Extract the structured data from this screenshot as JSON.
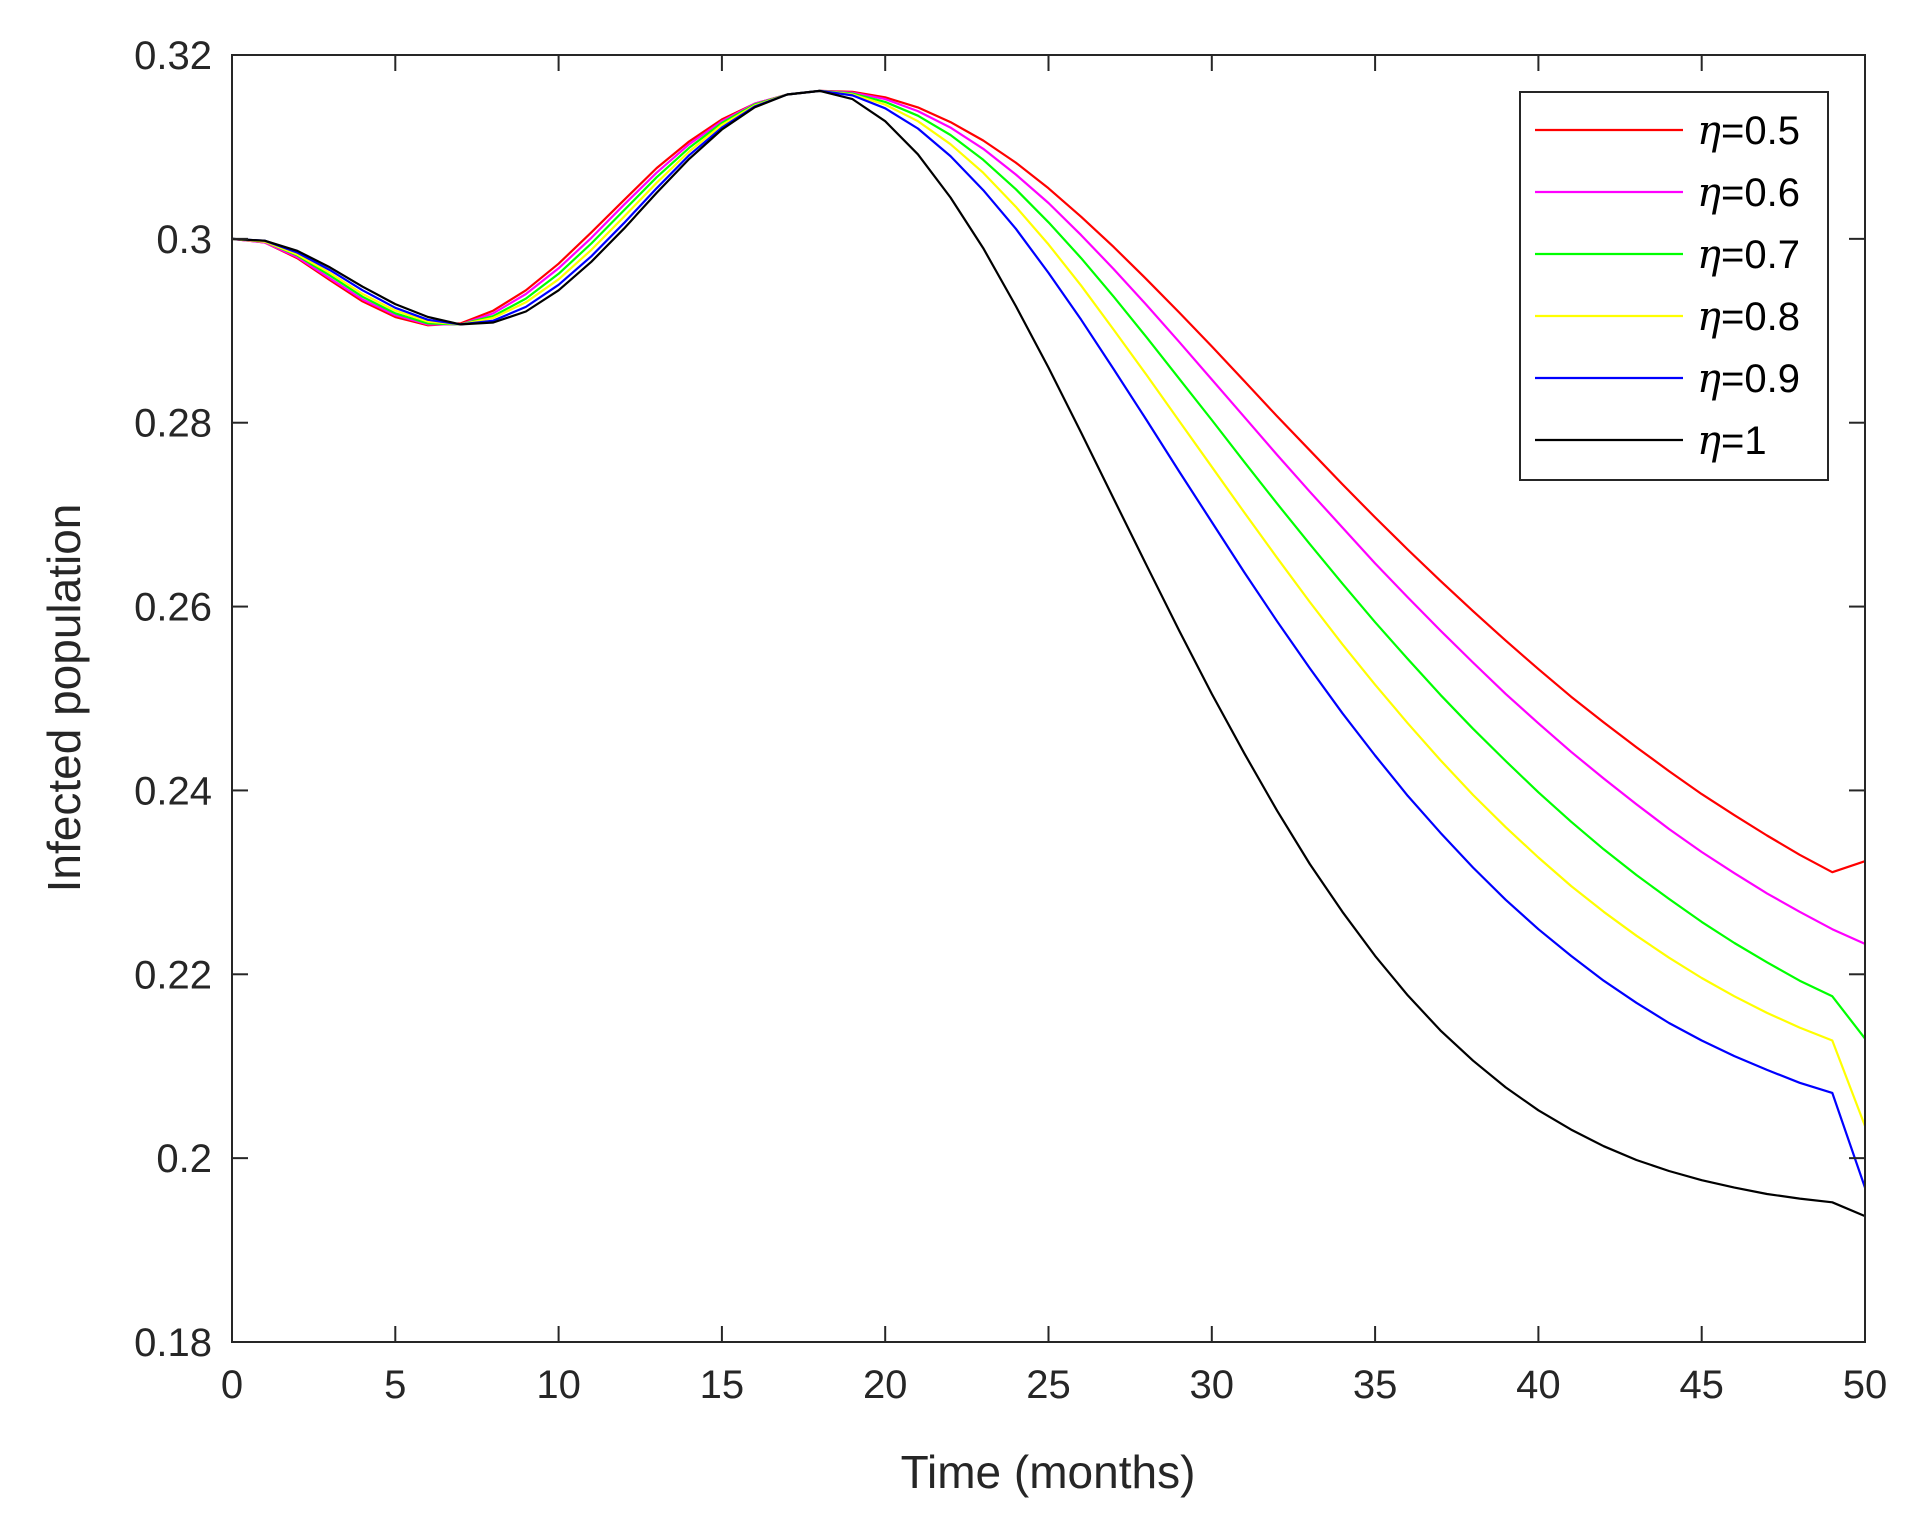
{
  "chart_data": {
    "type": "line",
    "title": "",
    "xlabel": "Time (months)",
    "ylabel": "Infected population",
    "xlim": [
      0,
      50
    ],
    "ylim": [
      0.18,
      0.32
    ],
    "xticks": [
      0,
      5,
      10,
      15,
      20,
      25,
      30,
      35,
      40,
      45,
      50
    ],
    "xtick_labels": [
      "0",
      "5",
      "10",
      "15",
      "20",
      "25",
      "30",
      "35",
      "40",
      "45",
      "50"
    ],
    "yticks": [
      0.18,
      0.2,
      0.22,
      0.24,
      0.26,
      0.28,
      0.3,
      0.32
    ],
    "ytick_labels": [
      "0.18",
      "0.2",
      "0.22",
      "0.24",
      "0.26",
      "0.28",
      "0.3",
      "0.32"
    ],
    "legend_position": "top-right",
    "grid": false,
    "series": [
      {
        "name": "η=0.5",
        "symbol": "η",
        "value_label": "=0.5",
        "color": "#ff0000",
        "x": [
          0,
          1,
          2,
          3,
          4,
          5,
          6,
          7,
          8,
          9,
          10,
          11,
          12,
          13,
          14,
          15,
          16,
          17,
          18,
          19,
          20,
          21,
          22,
          23,
          24,
          25,
          26,
          27,
          28,
          29,
          30,
          31,
          32,
          33,
          34,
          35,
          36,
          37,
          38,
          39,
          40,
          41,
          42,
          43,
          44,
          45,
          46,
          47,
          48,
          49,
          50
        ],
        "y": [
          0.3,
          0.2996,
          0.2979,
          0.2955,
          0.2932,
          0.2915,
          0.2906,
          0.2908,
          0.2922,
          0.2944,
          0.2973,
          0.3007,
          0.3042,
          0.3077,
          0.3106,
          0.313,
          0.3147,
          0.3157,
          0.3161,
          0.316,
          0.3154,
          0.3143,
          0.3127,
          0.3107,
          0.3083,
          0.3055,
          0.3024,
          0.2991,
          0.2956,
          0.292,
          0.2883,
          0.2845,
          0.2807,
          0.277,
          0.2733,
          0.2697,
          0.2662,
          0.2628,
          0.2595,
          0.2563,
          0.2532,
          0.2502,
          0.2474,
          0.2447,
          0.2421,
          0.2396,
          0.2373,
          0.2351,
          0.233,
          0.2311,
          0.2323
        ]
      },
      {
        "name": "η=0.6",
        "symbol": "η",
        "value_label": "=0.6",
        "color": "#ff00ff",
        "x": [
          0,
          1,
          2,
          3,
          4,
          5,
          6,
          7,
          8,
          9,
          10,
          11,
          12,
          13,
          14,
          15,
          16,
          17,
          18,
          19,
          20,
          21,
          22,
          23,
          24,
          25,
          26,
          27,
          28,
          29,
          30,
          31,
          32,
          33,
          34,
          35,
          36,
          37,
          38,
          39,
          40,
          41,
          42,
          43,
          44,
          45,
          46,
          47,
          48,
          49,
          50
        ],
        "y": [
          0.3,
          0.2996,
          0.298,
          0.2957,
          0.2934,
          0.2917,
          0.2907,
          0.2907,
          0.2919,
          0.294,
          0.2968,
          0.3001,
          0.3037,
          0.3072,
          0.3103,
          0.3128,
          0.3147,
          0.3157,
          0.3161,
          0.3159,
          0.3152,
          0.3139,
          0.3121,
          0.3098,
          0.307,
          0.3039,
          0.3004,
          0.2967,
          0.2928,
          0.2888,
          0.2847,
          0.2806,
          0.2765,
          0.2725,
          0.2686,
          0.2647,
          0.261,
          0.2574,
          0.2539,
          0.2505,
          0.2473,
          0.2442,
          0.2413,
          0.2385,
          0.2358,
          0.2333,
          0.231,
          0.2288,
          0.2268,
          0.2249,
          0.2233
        ]
      },
      {
        "name": "η=0.7",
        "symbol": "η",
        "value_label": "=0.7",
        "color": "#00ff00",
        "x": [
          0,
          1,
          2,
          3,
          4,
          5,
          6,
          7,
          8,
          9,
          10,
          11,
          12,
          13,
          14,
          15,
          16,
          17,
          18,
          19,
          20,
          21,
          22,
          23,
          24,
          25,
          26,
          27,
          28,
          29,
          30,
          31,
          32,
          33,
          34,
          35,
          36,
          37,
          38,
          39,
          40,
          41,
          42,
          43,
          44,
          45,
          46,
          47,
          48,
          49,
          50
        ],
        "y": [
          0.3,
          0.2997,
          0.2982,
          0.296,
          0.2937,
          0.2919,
          0.2908,
          0.2907,
          0.2916,
          0.2935,
          0.2962,
          0.2995,
          0.3031,
          0.3067,
          0.3099,
          0.3126,
          0.3146,
          0.3157,
          0.3161,
          0.3158,
          0.3149,
          0.3134,
          0.3113,
          0.3086,
          0.3054,
          0.3018,
          0.2979,
          0.2937,
          0.2893,
          0.2848,
          0.2803,
          0.2757,
          0.2712,
          0.2668,
          0.2625,
          0.2583,
          0.2543,
          0.2504,
          0.2467,
          0.2432,
          0.2398,
          0.2366,
          0.2336,
          0.2308,
          0.2282,
          0.2257,
          0.2234,
          0.2213,
          0.2193,
          0.2176,
          0.213
        ]
      },
      {
        "name": "η=0.8",
        "symbol": "η",
        "value_label": "=0.8",
        "color": "#ffff00",
        "x": [
          0,
          1,
          2,
          3,
          4,
          5,
          6,
          7,
          8,
          9,
          10,
          11,
          12,
          13,
          14,
          15,
          16,
          17,
          18,
          19,
          20,
          21,
          22,
          23,
          24,
          25,
          26,
          27,
          28,
          29,
          30,
          31,
          32,
          33,
          34,
          35,
          36,
          37,
          38,
          39,
          40,
          41,
          42,
          43,
          44,
          45,
          46,
          47,
          48,
          49,
          50
        ],
        "y": [
          0.3,
          0.2997,
          0.2983,
          0.2963,
          0.294,
          0.2922,
          0.291,
          0.2907,
          0.2914,
          0.2931,
          0.2956,
          0.2988,
          0.3024,
          0.3061,
          0.3095,
          0.3124,
          0.3145,
          0.3157,
          0.3161,
          0.3157,
          0.3146,
          0.3128,
          0.3103,
          0.3072,
          0.3035,
          0.2994,
          0.2949,
          0.2901,
          0.2852,
          0.2802,
          0.2752,
          0.2702,
          0.2653,
          0.2605,
          0.2559,
          0.2515,
          0.2473,
          0.2433,
          0.2395,
          0.236,
          0.2327,
          0.2296,
          0.2268,
          0.2242,
          0.2218,
          0.2196,
          0.2176,
          0.2158,
          0.2142,
          0.2128,
          0.2035
        ]
      },
      {
        "name": "η=0.9",
        "symbol": "η",
        "value_label": "=0.9",
        "color": "#0000ff",
        "x": [
          0,
          1,
          2,
          3,
          4,
          5,
          6,
          7,
          8,
          9,
          10,
          11,
          12,
          13,
          14,
          15,
          16,
          17,
          18,
          19,
          20,
          21,
          22,
          23,
          24,
          25,
          26,
          27,
          28,
          29,
          30,
          31,
          32,
          33,
          34,
          35,
          36,
          37,
          38,
          39,
          40,
          41,
          42,
          43,
          44,
          45,
          46,
          47,
          48,
          49,
          50
        ],
        "y": [
          0.3,
          0.2998,
          0.2985,
          0.2966,
          0.2944,
          0.2925,
          0.2912,
          0.2907,
          0.2911,
          0.2926,
          0.295,
          0.2981,
          0.3017,
          0.3055,
          0.3091,
          0.3121,
          0.3144,
          0.3157,
          0.3161,
          0.3156,
          0.3142,
          0.312,
          0.309,
          0.3053,
          0.3011,
          0.2963,
          0.2912,
          0.2858,
          0.2803,
          0.2747,
          0.2692,
          0.2637,
          0.2584,
          0.2533,
          0.2484,
          0.2438,
          0.2394,
          0.2354,
          0.2316,
          0.2281,
          0.2249,
          0.222,
          0.2193,
          0.2169,
          0.2147,
          0.2128,
          0.2111,
          0.2096,
          0.2082,
          0.2071,
          0.1968
        ]
      },
      {
        "name": "η=1",
        "symbol": "η",
        "value_label": "=1",
        "color": "#000000",
        "x": [
          0,
          1,
          2,
          3,
          4,
          5,
          6,
          7,
          8,
          9,
          10,
          11,
          12,
          13,
          14,
          15,
          16,
          17,
          18,
          19,
          20,
          21,
          22,
          23,
          24,
          25,
          26,
          27,
          28,
          29,
          30,
          31,
          32,
          33,
          34,
          35,
          36,
          37,
          38,
          39,
          40,
          41,
          42,
          43,
          44,
          45,
          46,
          47,
          48,
          49,
          50
        ],
        "y": [
          0.3,
          0.2998,
          0.2987,
          0.2969,
          0.2948,
          0.2929,
          0.2915,
          0.2907,
          0.2909,
          0.2921,
          0.2944,
          0.2975,
          0.3011,
          0.305,
          0.3087,
          0.3119,
          0.3143,
          0.3157,
          0.3161,
          0.3152,
          0.3128,
          0.3092,
          0.3045,
          0.299,
          0.2927,
          0.286,
          0.2789,
          0.2717,
          0.2645,
          0.2574,
          0.2505,
          0.244,
          0.2378,
          0.232,
          0.2268,
          0.222,
          0.2177,
          0.2139,
          0.2106,
          0.2077,
          0.2052,
          0.2031,
          0.2013,
          0.1998,
          0.1986,
          0.1976,
          0.1968,
          0.1961,
          0.1956,
          0.1952,
          0.1937
        ]
      }
    ]
  }
}
